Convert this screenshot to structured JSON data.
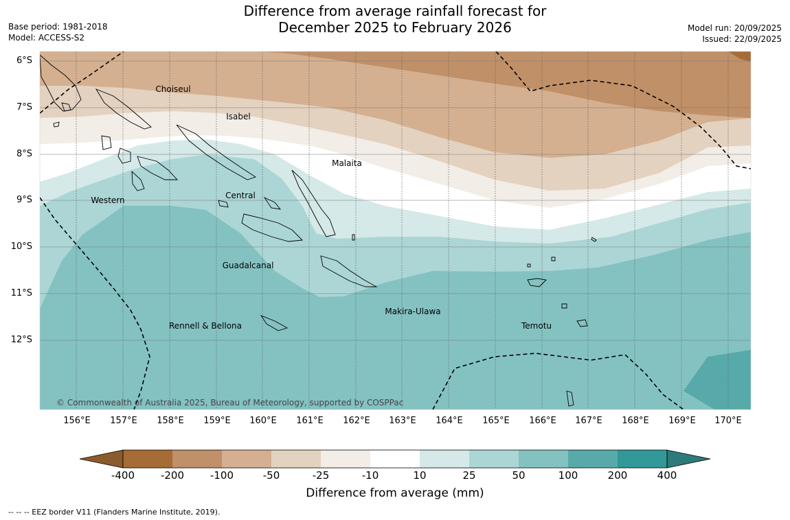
{
  "title_line1": "Difference from average rainfall forecast for",
  "title_line2": "December 2025 to February 2026",
  "base_period": "Base period: 1981-2018",
  "model": "Model: ACCESS-S2",
  "model_run": "Model run: 20/09/2025",
  "issued": "Issued: 22/09/2025",
  "lat_labels": [
    "6°S",
    "7°S",
    "8°S",
    "9°S",
    "10°S",
    "11°S",
    "12°S"
  ],
  "lon_labels": [
    "156°E",
    "157°E",
    "158°E",
    "159°E",
    "160°E",
    "161°E",
    "162°E",
    "163°E",
    "164°E",
    "165°E",
    "166°E",
    "167°E",
    "168°E",
    "169°E",
    "170°E"
  ],
  "regions": [
    "Choiseul",
    "Isabel",
    "Malaita",
    "Central",
    "Western",
    "Guadalcanal",
    "Makira-Ulawa",
    "Rennell & Bellona",
    "Temotu"
  ],
  "copyright": "© Commonwealth of Australia 2025, Bureau of Meteorology, supported by COSPPac",
  "colorbar": {
    "ticks": [
      "-400",
      "-200",
      "-100",
      "-50",
      "-25",
      "-10",
      "10",
      "25",
      "50",
      "100",
      "200",
      "400"
    ],
    "colors": [
      "#a66c35",
      "#c09068",
      "#d4b090",
      "#e4d2c0",
      "#f2ede6",
      "#ffffff",
      "#d4e9e8",
      "#acd6d6",
      "#84c2c2",
      "#58aaaa",
      "#329898",
      "#2e7a7a"
    ],
    "title": "Difference from average (mm)"
  },
  "legend_note": "-- -- -- EEZ border V11 (Flanders Marine Institute, 2019)."
}
